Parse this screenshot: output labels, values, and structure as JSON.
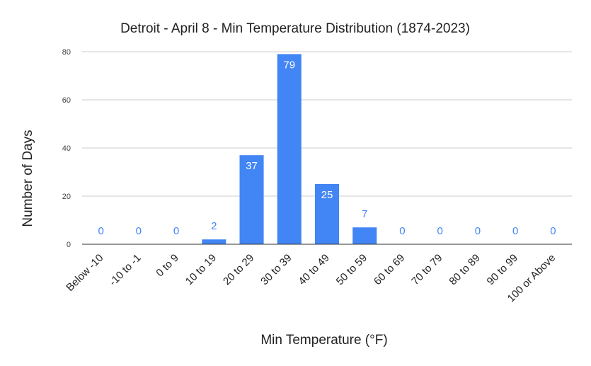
{
  "chart_data": {
    "type": "bar",
    "title": "Detroit - April 8 - Min Temperature Distribution (1874-2023)",
    "xlabel": "Min Temperature (°F)",
    "ylabel": "Number of Days",
    "categories": [
      "Below -10",
      "-10 to -1",
      "0 to 9",
      "10 to 19",
      "20 to 29",
      "30 to 39",
      "40 to 49",
      "50 to 59",
      "60 to 69",
      "70 to 79",
      "80 to 89",
      "90 to 99",
      "100 or Above"
    ],
    "values": [
      0,
      0,
      0,
      2,
      37,
      79,
      25,
      7,
      0,
      0,
      0,
      0,
      0
    ],
    "data_labels": [
      "0",
      "0",
      "0",
      "2",
      "37",
      "79",
      "25",
      "7",
      "0",
      "0",
      "0",
      "0",
      "0"
    ],
    "ylim": [
      0,
      80
    ],
    "yticks": [
      0,
      20,
      40,
      60,
      80
    ],
    "ytick_labels": [
      "0",
      "20",
      "40",
      "60",
      "80"
    ],
    "grid": true,
    "legend": "none",
    "bar_color": "#4285f4"
  }
}
